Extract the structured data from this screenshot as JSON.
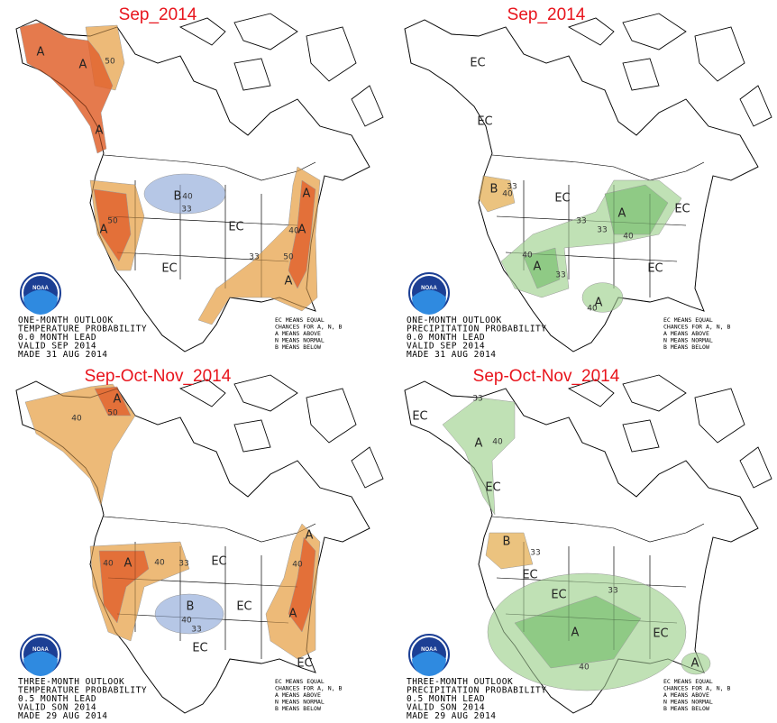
{
  "logo": "NOAA",
  "legend_lines": [
    "EC MEANS EQUAL",
    "CHANCES FOR A, N, B",
    "A MEANS ABOVE",
    "N MEANS NORMAL",
    "B MEANS BELOW"
  ],
  "panels": [
    {
      "title": "Sep_2014",
      "outlook_lines": [
        "ONE-MONTH OUTLOOK",
        "TEMPERATURE PROBABILITY",
        "0.0 MONTH LEAD",
        "VALID SEP 2014",
        "MADE 31 AUG 2014"
      ],
      "labels": [
        "A",
        "A",
        "50",
        "A",
        "B",
        "40",
        "33",
        "A",
        "50",
        "EC",
        "EC",
        "A",
        "A",
        "40",
        "33",
        "50",
        "A"
      ]
    },
    {
      "title": "Sep_2014",
      "outlook_lines": [
        "ONE-MONTH OUTLOOK",
        "PRECIPITATION PROBABILITY",
        "0.0 MONTH LEAD",
        "VALID SEP 2014",
        "MADE 31 AUG 2014"
      ],
      "labels": [
        "EC",
        "EC",
        "B",
        "33",
        "40",
        "EC",
        "33",
        "EC",
        "A",
        "40",
        "33",
        "A",
        "40",
        "33",
        "EC",
        "A",
        "40"
      ]
    },
    {
      "title": "Sep-Oct-Nov_2014",
      "outlook_lines": [
        "THREE-MONTH OUTLOOK",
        "TEMPERATURE PROBABILITY",
        "0.5 MONTH LEAD",
        "VALID SON 2014",
        "MADE 29 AUG 2014"
      ],
      "labels": [
        "A",
        "50",
        "40",
        "A",
        "40",
        "40",
        "33",
        "EC",
        "A",
        "40",
        "B",
        "40",
        "33",
        "EC",
        "EC",
        "A",
        "EC"
      ]
    },
    {
      "title": "Sep-Oct-Nov_2014",
      "outlook_lines": [
        "THREE-MONTH OUTLOOK",
        "PRECIPITATION PROBABILITY",
        "0.5 MONTH LEAD",
        "VALID SON 2014",
        "MADE 29 AUG 2014"
      ],
      "labels": [
        "EC",
        "33",
        "A",
        "40",
        "EC",
        "B",
        "33",
        "EC",
        "EC",
        "33",
        "A",
        "40",
        "EC",
        "A"
      ]
    }
  ]
}
